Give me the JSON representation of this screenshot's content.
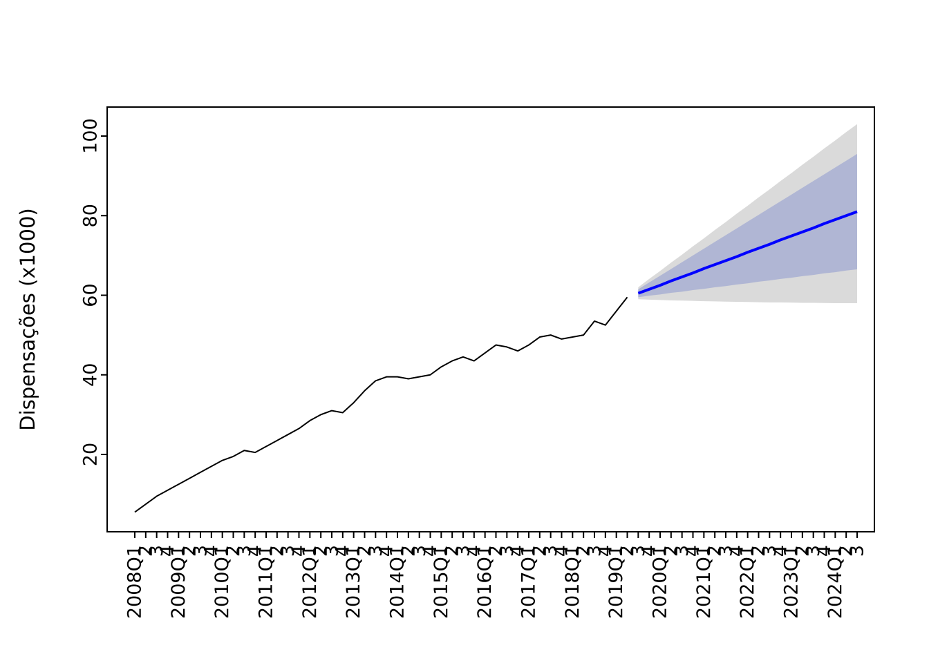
{
  "figure": {
    "background": "#ffffff"
  },
  "chart_data": {
    "type": "line",
    "title": "",
    "xlabel": "",
    "ylabel": "Dispensações (x1000)",
    "grid": false,
    "legend_position": "none",
    "y_ticks": [
      20,
      40,
      60,
      80,
      100
    ],
    "ylim": [
      0.5,
      107
    ],
    "axis_color": "#000000",
    "categories": [
      "2008Q1",
      "2",
      "3",
      "4",
      "2009Q1",
      "2",
      "3",
      "4",
      "2010Q1",
      "2",
      "3",
      "4",
      "2011Q1",
      "2",
      "3",
      "4",
      "2012Q1",
      "2",
      "3",
      "4",
      "2013Q1",
      "2",
      "3",
      "4",
      "2014Q1",
      "2",
      "3",
      "4",
      "2015Q1",
      "2",
      "3",
      "4",
      "2016Q1",
      "2",
      "3",
      "4",
      "2017Q1",
      "2",
      "3",
      "4",
      "2018Q1",
      "2",
      "3",
      "4",
      "2019Q1",
      "2",
      "3",
      "4",
      "2020Q1",
      "2",
      "3",
      "4",
      "2021Q1",
      "2",
      "3",
      "4",
      "2022Q1",
      "2",
      "3",
      "4",
      "2023Q1",
      "2",
      "3",
      "4",
      "2024Q1",
      "2",
      "3"
    ],
    "series": [
      {
        "name": "historical",
        "color": "#000000",
        "width": 2,
        "start_index": 0,
        "values": [
          5.5,
          7.5,
          9.5,
          11,
          12.5,
          14,
          15.5,
          17,
          18.5,
          19.5,
          21,
          20.5,
          22,
          23.5,
          25,
          26.5,
          28.5,
          30,
          31,
          30.5,
          33,
          36,
          38.5,
          39.5,
          39.5,
          39,
          39.5,
          40,
          42,
          43.5,
          44.5,
          43.5,
          45.5,
          47.5,
          47,
          46,
          47.5,
          49.5,
          50,
          49,
          49.5,
          50,
          53.5,
          52.5,
          56,
          59.5
        ]
      },
      {
        "name": "forecast-mean",
        "color": "#0000ff",
        "width": 4,
        "start_index": 46,
        "values": [
          60.5,
          61.5,
          62.5,
          63.6,
          64.6,
          65.6,
          66.7,
          67.7,
          68.7,
          69.7,
          70.8,
          71.8,
          72.8,
          73.9,
          74.9,
          75.9,
          76.9,
          78,
          79,
          80,
          81
        ]
      }
    ],
    "bands": [
      {
        "level": 95,
        "color": "#dadada",
        "start_index": 46,
        "lower": [
          59,
          58.9,
          58.8,
          58.7,
          58.65,
          58.6,
          58.5,
          58.45,
          58.4,
          58.35,
          58.3,
          58.25,
          58.2,
          58.2,
          58.15,
          58.1,
          58.1,
          58.05,
          58,
          58,
          58
        ],
        "upper": [
          62,
          64.1,
          66.1,
          68.2,
          70.2,
          72.3,
          74.3,
          76.4,
          78.4,
          80.5,
          82.5,
          84.6,
          86.6,
          88.7,
          90.7,
          92.8,
          94.8,
          96.9,
          98.9,
          101,
          103
        ]
      },
      {
        "level": 80,
        "color": "#b0b6d4",
        "start_index": 46,
        "lower": [
          59.5,
          59.9,
          60.2,
          60.6,
          60.9,
          61.3,
          61.6,
          62,
          62.3,
          62.7,
          63,
          63.4,
          63.7,
          64.1,
          64.4,
          64.8,
          65.1,
          65.5,
          65.8,
          66.2,
          66.5
        ],
        "upper": [
          61.5,
          63.2,
          64.9,
          66.6,
          68.3,
          70,
          71.7,
          73.4,
          75.1,
          76.8,
          78.5,
          80.2,
          81.9,
          83.6,
          85.3,
          87,
          88.7,
          90.4,
          92.1,
          93.8,
          95.5
        ]
      }
    ]
  }
}
